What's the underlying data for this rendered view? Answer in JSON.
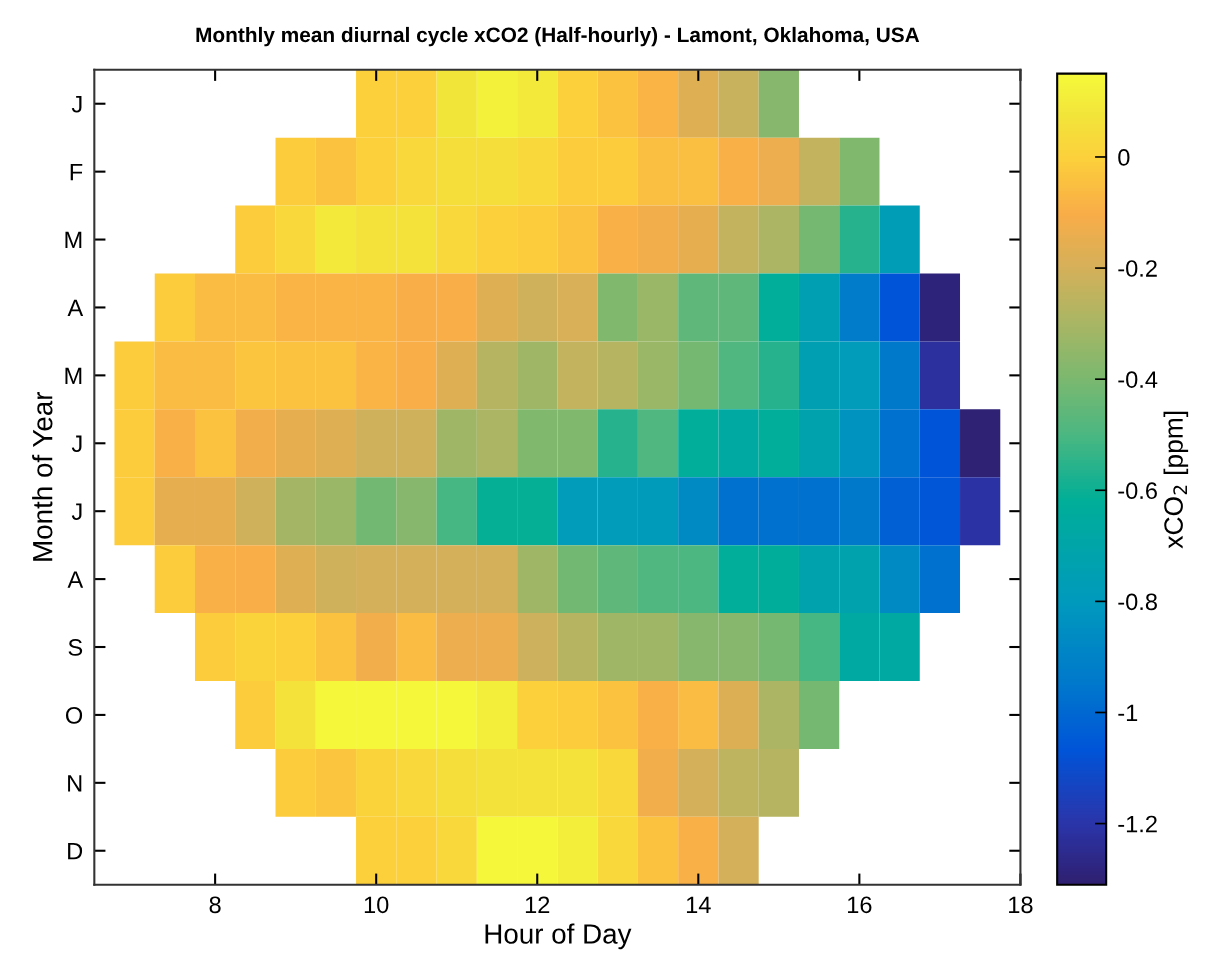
{
  "chart_data": {
    "type": "heatmap",
    "title": "Monthly mean diurnal cycle xCO2 (Half-hourly) - Lamont, Oklahoma, USA",
    "xlabel": "Hour of Day",
    "ylabel": "Month of Year",
    "clabel": "xCO$_{2}$ [ppm]",
    "x": [
      7.0,
      7.5,
      8.0,
      8.5,
      9.0,
      9.5,
      10.0,
      10.5,
      11.0,
      11.5,
      12.0,
      12.5,
      13.0,
      13.5,
      14.0,
      14.5,
      15.0,
      15.5,
      16.0,
      16.5,
      17.0,
      17.5
    ],
    "xlim": [
      6.5,
      18
    ],
    "xticks": [
      8,
      10,
      12,
      14,
      16,
      18
    ],
    "y_categories": [
      "J",
      "F",
      "M",
      "A",
      "M",
      "J",
      "J",
      "A",
      "S",
      "O",
      "N",
      "D"
    ],
    "clim": [
      -1.31,
      0.15
    ],
    "cticks": [
      -1.2,
      -1,
      -0.8,
      -0.6,
      -0.4,
      -0.2,
      0
    ],
    "cells": [
      [
        null,
        null,
        null,
        null,
        null,
        null,
        0.0,
        0.0,
        0.08,
        0.12,
        0.09,
        0.0,
        -0.04,
        -0.08,
        -0.17,
        -0.23,
        -0.37,
        null,
        null,
        null,
        null,
        null
      ],
      [
        null,
        null,
        null,
        null,
        -0.01,
        -0.04,
        0.0,
        0.03,
        0.05,
        0.05,
        0.03,
        -0.01,
        -0.01,
        -0.05,
        -0.05,
        -0.09,
        -0.14,
        -0.24,
        -0.39,
        null,
        null,
        null
      ],
      [
        null,
        null,
        null,
        -0.01,
        0.03,
        0.09,
        0.06,
        0.06,
        0.03,
        0.0,
        -0.01,
        -0.04,
        -0.09,
        -0.12,
        -0.15,
        -0.24,
        -0.29,
        -0.41,
        -0.56,
        -0.77,
        null,
        null
      ],
      [
        null,
        -0.01,
        -0.06,
        -0.06,
        -0.08,
        -0.08,
        -0.08,
        -0.1,
        -0.1,
        -0.17,
        -0.21,
        -0.19,
        -0.39,
        -0.33,
        -0.46,
        -0.46,
        -0.62,
        -0.75,
        -0.93,
        -1.07,
        -1.29,
        null
      ],
      [
        -0.01,
        -0.06,
        -0.06,
        -0.03,
        -0.04,
        -0.04,
        -0.08,
        -0.1,
        -0.17,
        -0.27,
        -0.32,
        -0.24,
        -0.27,
        -0.33,
        -0.41,
        -0.49,
        -0.56,
        -0.75,
        -0.78,
        -0.94,
        -1.22,
        null
      ],
      [
        -0.01,
        -0.09,
        -0.04,
        -0.12,
        -0.15,
        -0.17,
        -0.21,
        -0.21,
        -0.32,
        -0.29,
        -0.39,
        -0.39,
        -0.56,
        -0.49,
        -0.62,
        -0.67,
        -0.62,
        -0.72,
        -0.83,
        -0.97,
        -1.07,
        -1.3
      ],
      [
        -0.01,
        -0.15,
        -0.15,
        -0.21,
        -0.31,
        -0.33,
        -0.42,
        -0.37,
        -0.51,
        -0.61,
        -0.61,
        -0.78,
        -0.78,
        -0.79,
        -0.87,
        -0.97,
        -0.97,
        -0.97,
        -0.94,
        -1.03,
        -1.06,
        -1.21
      ],
      [
        null,
        -0.01,
        -0.09,
        -0.1,
        -0.17,
        -0.21,
        -0.2,
        -0.2,
        -0.2,
        -0.2,
        -0.32,
        -0.42,
        -0.46,
        -0.49,
        -0.5,
        -0.62,
        -0.63,
        -0.72,
        -0.72,
        -0.87,
        -0.97,
        null
      ],
      [
        null,
        null,
        -0.01,
        0.01,
        0.0,
        -0.04,
        -0.12,
        -0.06,
        -0.14,
        -0.14,
        -0.22,
        -0.27,
        -0.32,
        -0.32,
        -0.37,
        -0.37,
        -0.41,
        -0.51,
        -0.67,
        -0.67,
        null,
        null
      ],
      [
        null,
        null,
        null,
        -0.01,
        0.06,
        0.14,
        0.14,
        0.14,
        0.14,
        0.11,
        0.0,
        -0.01,
        -0.04,
        -0.09,
        -0.06,
        -0.18,
        -0.29,
        -0.41,
        null,
        null,
        null,
        null
      ],
      [
        null,
        null,
        null,
        null,
        -0.01,
        -0.03,
        0.01,
        0.03,
        0.05,
        0.07,
        0.06,
        0.06,
        0.03,
        -0.12,
        -0.2,
        -0.25,
        -0.27,
        null,
        null,
        null,
        null,
        null
      ],
      [
        null,
        null,
        null,
        null,
        null,
        null,
        0.0,
        0.0,
        0.03,
        0.14,
        0.14,
        0.11,
        0.03,
        -0.04,
        -0.09,
        -0.2,
        null,
        null,
        null,
        null,
        null,
        null
      ]
    ]
  }
}
